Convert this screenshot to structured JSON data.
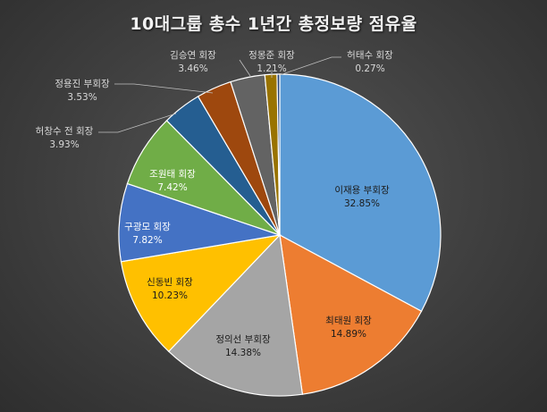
{
  "chart_data": {
    "type": "pie",
    "title": "10대그룹 총수 1년간 총정보량 점유율",
    "slices": [
      {
        "label": "이재용 부회장",
        "pct_label": "32.85%",
        "value": 32.85,
        "color": "#5b9bd5"
      },
      {
        "label": "최태원 회장",
        "pct_label": "14.89%",
        "value": 14.89,
        "color": "#ed7d31"
      },
      {
        "label": "정의선 부회장",
        "pct_label": "14.38%",
        "value": 14.38,
        "color": "#a5a5a5"
      },
      {
        "label": "신동빈 회장",
        "pct_label": "10.23%",
        "value": 10.23,
        "color": "#ffc000"
      },
      {
        "label": "구광모 회장",
        "pct_label": "7.82%",
        "value": 7.82,
        "color": "#4472c4"
      },
      {
        "label": "조원태 회장",
        "pct_label": "7.42%",
        "value": 7.42,
        "color": "#70ad47"
      },
      {
        "label": "허창수 전 회장",
        "pct_label": "3.93%",
        "value": 3.93,
        "color": "#255e91"
      },
      {
        "label": "정용진 부회장",
        "pct_label": "3.53%",
        "value": 3.53,
        "color": "#9e480e"
      },
      {
        "label": "김승연 회장",
        "pct_label": "3.46%",
        "value": 3.46,
        "color": "#636363"
      },
      {
        "label": "정몽준 회장",
        "pct_label": "1.21%",
        "value": 1.21,
        "color": "#997300"
      },
      {
        "label": "허태수 회장",
        "pct_label": "0.27%",
        "value": 0.27,
        "color": "#264478"
      }
    ],
    "legend": "none",
    "label_placement": "mixed inside/outside with leader lines"
  }
}
